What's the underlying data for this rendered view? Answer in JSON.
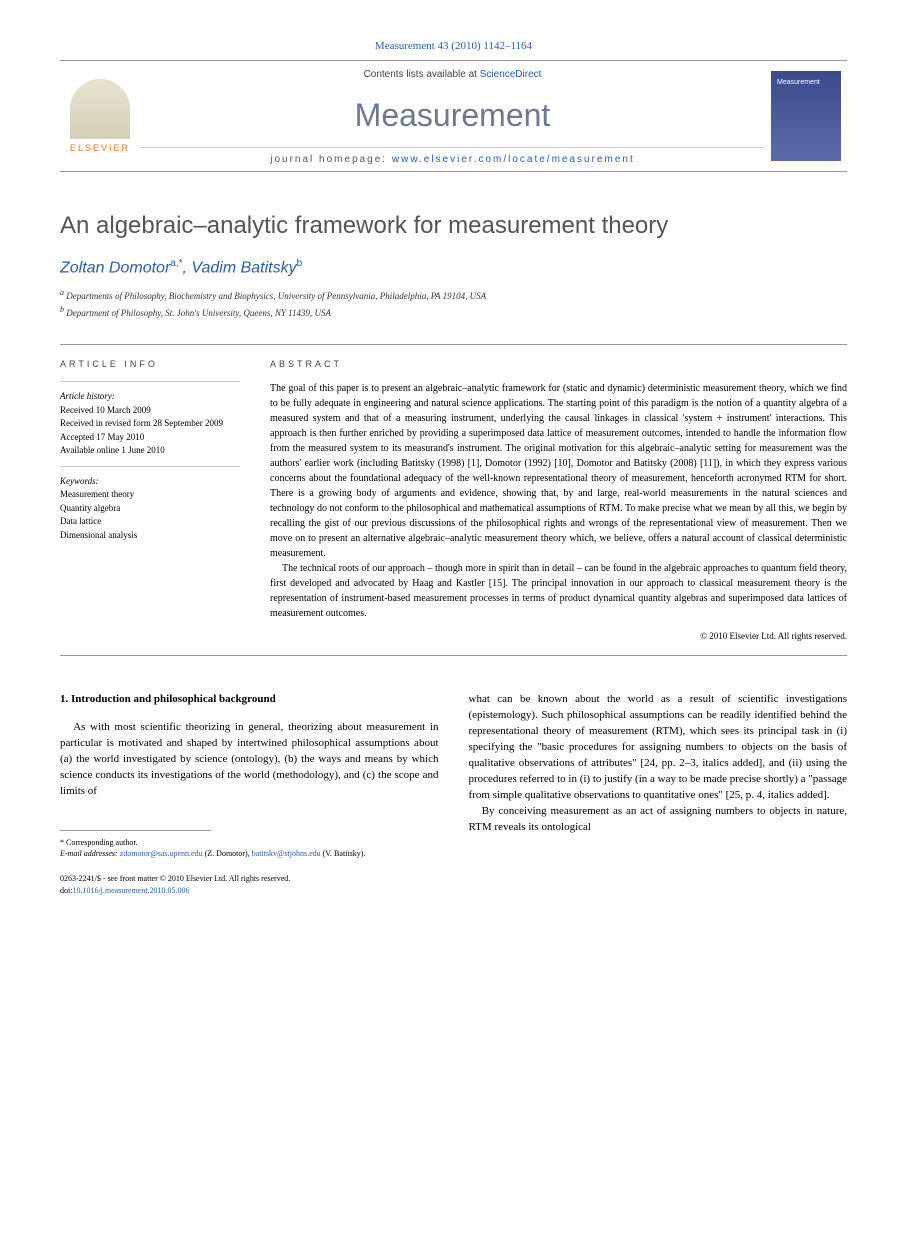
{
  "journal_ref": "Measurement 43 (2010) 1142–1164",
  "header": {
    "contents_prefix": "Contents lists available at ",
    "contents_link": "ScienceDirect",
    "journal_name": "Measurement",
    "homepage_prefix": "journal homepage: ",
    "homepage_url": "www.elsevier.com/locate/measurement",
    "elsevier_label": "ELSEVIER",
    "thumb_text": "Measurement"
  },
  "article": {
    "title": "An algebraic–analytic framework for measurement theory",
    "authors_html": "Zoltan Domotor",
    "author1": "Zoltan Domotor",
    "author1_sup": "a,*",
    "author2": "Vadim Batitsky",
    "author2_sup": "b",
    "aff_a_sup": "a",
    "aff_a": "Departments of Philosophy, Biochemistry and Biophysics, University of Pennsylvania, Philadelphia, PA 19104, USA",
    "aff_b_sup": "b",
    "aff_b": "Department of Philosophy, St. John's University, Queens, NY 11439, USA"
  },
  "info": {
    "heading": "ARTICLE INFO",
    "history_label": "Article history:",
    "received": "Received 10 March 2009",
    "revised": "Received in revised form 28 September 2009",
    "accepted": "Accepted 17 May 2010",
    "online": "Available online 1 June 2010",
    "keywords_label": "Keywords:",
    "kw1": "Measurement theory",
    "kw2": "Quantity algebra",
    "kw3": "Data lattice",
    "kw4": "Dimensional analysis"
  },
  "abstract": {
    "heading": "ABSTRACT",
    "p1": "The goal of this paper is to present an algebraic–analytic framework for (static and dynamic) deterministic measurement theory, which we find to be fully adequate in engineering and natural science applications. The starting point of this paradigm is the notion of a quantity algebra of a measured system and that of a measuring instrument, underlying the causal linkages in classical 'system + instrument' interactions. This approach is then further enriched by providing a superimposed data lattice of measurement outcomes, intended to handle the information flow from the measured system to its measurand's instrument. The original motivation for this algebraic–analytic setting for measurement was the authors' earlier work (including Batitsky (1998) [1], Domotor (1992) [10], Domotor and Batitsky (2008) [11]), in which they express various concerns about the foundational adequacy of the well-known representational theory of measurement, henceforth acronymed RTM for short. There is a growing body of arguments and evidence, showing that, by and large, real-world measurements in the natural sciences and technology do not conform to the philosophical and mathematical assumptions of RTM. To make precise what we mean by all this, we begin by recalling the gist of our previous discussions of the philosophical rights and wrongs of the representational view of measurement. Then we move on to present an alternative algebraic–analytic measurement theory which, we believe, offers a natural account of classical deterministic measurement.",
    "p2": "The technical roots of our approach – though more in spirit than in detail – can be found in the algebraic approaches to quantum field theory, first developed and advocated by Haag and Kastler [15]. The principal innovation in our approach to classical measurement theory is the representation of instrument-based measurement processes in terms of product dynamical quantity algebras and superimposed data lattices of measurement outcomes.",
    "copyright": "© 2010 Elsevier Ltd. All rights reserved."
  },
  "body": {
    "section_heading": "1. Introduction and philosophical background",
    "col1_p1": "As with most scientific theorizing in general, theorizing about measurement in particular is motivated and shaped by intertwined philosophical assumptions about (a) the world investigated by science (ontology), (b) the ways and means by which science conducts its investigations of the world (methodology), and (c) the scope and limits of",
    "col2_p1": "what can be known about the world as a result of scientific investigations (epistemology). Such philosophical assumptions can be readily identified behind the representational theory of measurement (RTM), which sees its principal task in (i) specifying the \"basic procedures for assigning numbers to objects on the basis of qualitative observations of attributes\" [24, pp. 2–3, italics added], and (ii) using the procedures referred to in (i) to justify (in a way to be made precise shortly) a \"passage from simple qualitative observations to quantitative ones\" [25, p. 4, italics added].",
    "col2_p2": "By conceiving measurement as an act of assigning numbers to objects in nature, RTM reveals its ontological"
  },
  "footnotes": {
    "corresp_label": "* Corresponding author.",
    "email_label": "E-mail addresses: ",
    "email1": "zdomotor@sas.upenn.edu",
    "email1_name": " (Z. Domotor), ",
    "email2": "batitskv@stjohns.edu",
    "email2_name": " (V. Batitsky)."
  },
  "footer": {
    "issn_line": "0263-2241/$ - see front matter © 2010 Elsevier Ltd. All rights reserved.",
    "doi_label": "doi:",
    "doi": "10.1016/j.measurement.2010.05.006"
  }
}
